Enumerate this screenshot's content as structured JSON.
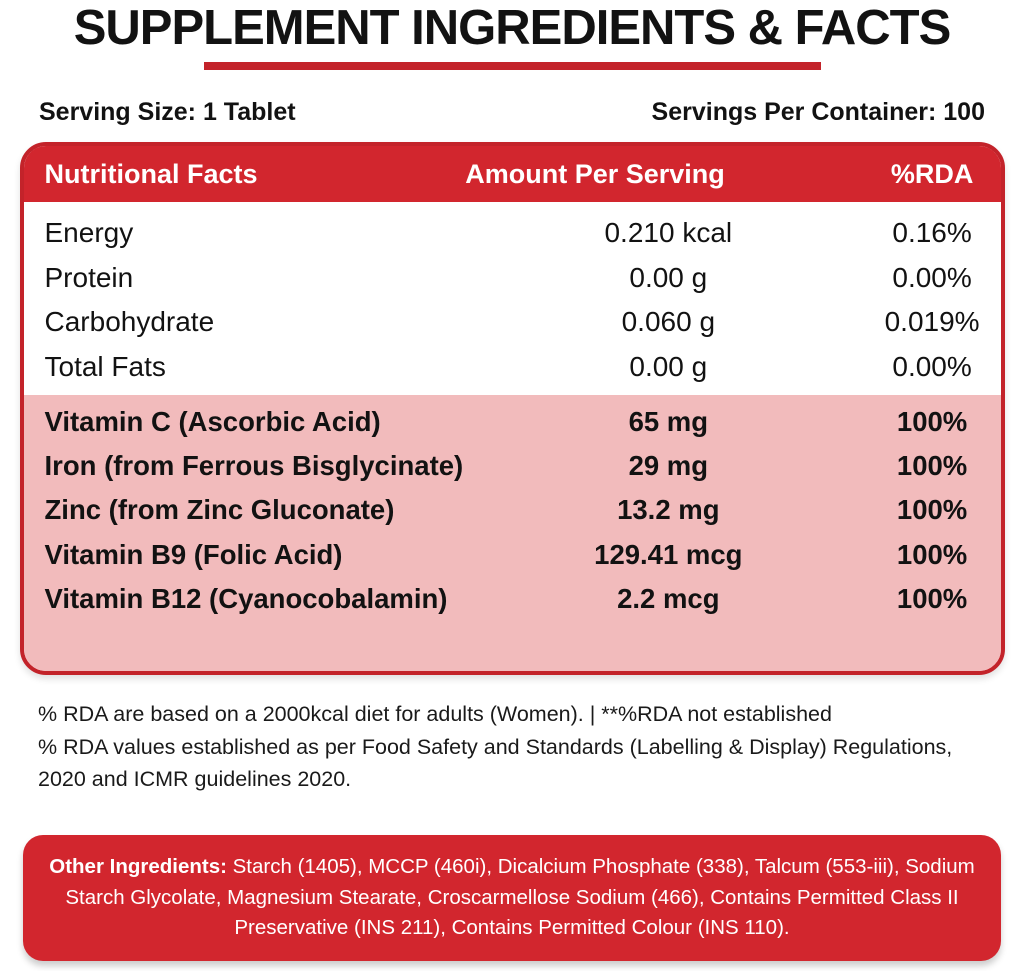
{
  "title": "SUPPLEMENT INGREDIENTS & FACTS",
  "serving": {
    "size": "Serving Size: 1 Tablet",
    "per_container": "Servings Per Container: 100"
  },
  "table": {
    "headers": [
      "Nutritional Facts",
      "Amount Per Serving",
      "%RDA"
    ],
    "macro_rows": [
      {
        "name": "Energy",
        "amount": "0.210 kcal",
        "rda": "0.16%"
      },
      {
        "name": "Protein",
        "amount": "0.00 g",
        "rda": "0.00%"
      },
      {
        "name": "Carbohydrate",
        "amount": "0.060 g",
        "rda": "0.019%"
      },
      {
        "name": "Total Fats",
        "amount": "0.00 g",
        "rda": "0.00%"
      }
    ],
    "micro_rows": [
      {
        "name": "Vitamin C (Ascorbic Acid)",
        "amount": "65 mg",
        "rda": "100%"
      },
      {
        "name": "Iron (from Ferrous Bisglycinate)",
        "amount": "29 mg",
        "rda": "100%"
      },
      {
        "name": "Zinc (from Zinc Gluconate)",
        "amount": "13.2 mg",
        "rda": "100%"
      },
      {
        "name": "Vitamin B9 (Folic Acid)",
        "amount": "129.41 mcg",
        "rda": "100%"
      },
      {
        "name": "Vitamin B12 (Cyanocobalamin)",
        "amount": "2.2 mcg",
        "rda": "100%"
      }
    ]
  },
  "footnotes": {
    "line1": "% RDA are based on a 2000kcal diet for adults (Women). | **%RDA not established",
    "line2": "% RDA values established as per Food Safety and Standards (Labelling & Display) Regulations, 2020 and ICMR guidelines 2020."
  },
  "other_ingredients": {
    "label": "Other Ingredients:",
    "text": " Starch (1405), MCCP (460i), Dicalcium Phosphate (338), Talcum (553-iii), Sodium Starch Glycolate, Magnesium Stearate, Croscarmellose Sodium (466), Contains Permitted Class II Preservative (INS 211), Contains Permitted Colour (INS 110)."
  },
  "colors": {
    "brand_red": "#D2262E",
    "border_red": "#C3232A",
    "light_pink": "#F2BBBC",
    "text_black": "#121212",
    "white": "#FFFFFF"
  }
}
